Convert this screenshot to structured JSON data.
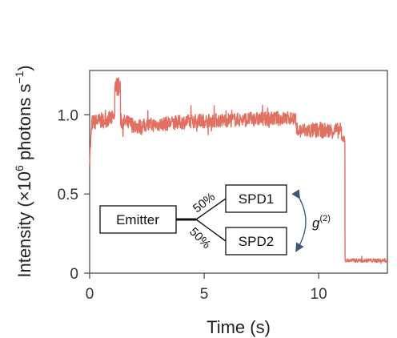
{
  "chart_data": {
    "type": "line",
    "title": "",
    "xlabel": "Time (s)",
    "ylabel": {
      "main": "Intensity (×10",
      "sup": "6",
      "mid": " photons s",
      "sup2": "−1",
      "end": ")"
    },
    "xlim": [
      0,
      13
    ],
    "ylim": [
      0,
      1.28
    ],
    "x_ticks": [
      0,
      5,
      10
    ],
    "x_tick_labels": [
      "0",
      "5",
      "10"
    ],
    "y_ticks": [
      0,
      0.5,
      1.0
    ],
    "y_tick_labels": [
      "0",
      "0.5",
      "1.0"
    ],
    "series": [
      {
        "color": "#e07060",
        "segments": [
          {
            "x_start": 0.0,
            "x_end": 0.1,
            "y_start": 0.72,
            "y_end": 0.95,
            "noise": 0.04
          },
          {
            "x_start": 0.1,
            "x_end": 1.1,
            "y_start": 0.95,
            "y_end": 0.98,
            "noise": 0.05
          },
          {
            "x_start": 1.1,
            "x_end": 1.35,
            "y_start": 1.18,
            "y_end": 1.18,
            "noise": 0.06
          },
          {
            "x_start": 1.35,
            "x_end": 2.3,
            "y_start": 0.96,
            "y_end": 0.92,
            "noise": 0.05
          },
          {
            "x_start": 2.3,
            "x_end": 4.5,
            "y_start": 0.93,
            "y_end": 0.96,
            "noise": 0.045
          },
          {
            "x_start": 4.5,
            "x_end": 9.0,
            "y_start": 0.96,
            "y_end": 0.98,
            "noise": 0.045
          },
          {
            "x_start": 9.0,
            "x_end": 11.0,
            "y_start": 0.9,
            "y_end": 0.9,
            "noise": 0.05
          },
          {
            "x_start": 11.0,
            "x_end": 11.15,
            "y_start": 0.85,
            "y_end": 0.85,
            "noise": 0.02
          },
          {
            "x_start": 11.15,
            "x_end": 13.0,
            "y_start": 0.08,
            "y_end": 0.08,
            "noise": 0.012
          }
        ],
        "noise_spread": 0.04
      }
    ],
    "inset_diagram": {
      "emitter": "Emitter",
      "detector_1": "SPD1",
      "detector_2": "SPD2",
      "split_top": "50%",
      "split_bottom": "50%",
      "correlation": {
        "base": "g",
        "sup": "(2)"
      }
    },
    "grid": false,
    "legend": "none"
  }
}
